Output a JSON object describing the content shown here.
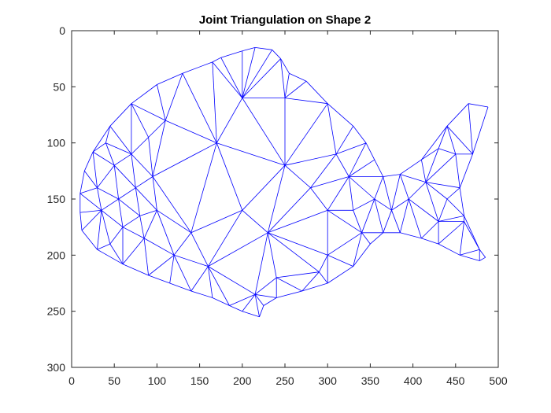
{
  "chart_data": {
    "type": "triangulation",
    "title": "Joint Triangulation on Shape 2",
    "xlim": [
      0,
      500
    ],
    "ylim": [
      0,
      300
    ],
    "y_axis_reversed": true,
    "grid": false,
    "xticks": [
      0,
      50,
      100,
      150,
      200,
      250,
      300,
      350,
      400,
      450,
      500
    ],
    "yticks": [
      0,
      50,
      100,
      150,
      200,
      250,
      300
    ],
    "edge_color": "#0000ff",
    "outline": [
      [
        10,
        145
      ],
      [
        15,
        125
      ],
      [
        25,
        108
      ],
      [
        45,
        85
      ],
      [
        70,
        65
      ],
      [
        100,
        48
      ],
      [
        130,
        38
      ],
      [
        165,
        28
      ],
      [
        175,
        24
      ],
      [
        200,
        18
      ],
      [
        215,
        15
      ],
      [
        235,
        17
      ],
      [
        245,
        25
      ],
      [
        255,
        38
      ],
      [
        275,
        45
      ],
      [
        300,
        65
      ],
      [
        330,
        85
      ],
      [
        345,
        100
      ],
      [
        355,
        115
      ],
      [
        365,
        130
      ],
      [
        385,
        128
      ],
      [
        410,
        115
      ],
      [
        440,
        85
      ],
      [
        465,
        65
      ],
      [
        488,
        68
      ],
      [
        470,
        110
      ],
      [
        455,
        140
      ],
      [
        460,
        165
      ],
      [
        478,
        195
      ],
      [
        485,
        202
      ],
      [
        478,
        205
      ],
      [
        455,
        200
      ],
      [
        430,
        190
      ],
      [
        410,
        185
      ],
      [
        385,
        180
      ],
      [
        365,
        180
      ],
      [
        350,
        190
      ],
      [
        330,
        210
      ],
      [
        300,
        225
      ],
      [
        270,
        232
      ],
      [
        240,
        238
      ],
      [
        225,
        245
      ],
      [
        220,
        255
      ],
      [
        200,
        250
      ],
      [
        185,
        245
      ],
      [
        165,
        238
      ],
      [
        140,
        232
      ],
      [
        115,
        225
      ],
      [
        90,
        218
      ],
      [
        60,
        208
      ],
      [
        30,
        195
      ],
      [
        12,
        178
      ],
      [
        10,
        162
      ]
    ],
    "interior": [
      [
        30,
        140
      ],
      [
        35,
        160
      ],
      [
        50,
        120
      ],
      [
        55,
        150
      ],
      [
        60,
        175
      ],
      [
        70,
        110
      ],
      [
        75,
        140
      ],
      [
        80,
        165
      ],
      [
        85,
        185
      ],
      [
        90,
        95
      ],
      [
        95,
        130
      ],
      [
        100,
        160
      ],
      [
        110,
        80
      ],
      [
        140,
        180
      ],
      [
        200,
        160
      ],
      [
        250,
        120
      ],
      [
        280,
        140
      ],
      [
        300,
        160
      ],
      [
        230,
        180
      ],
      [
        170,
        100
      ],
      [
        310,
        110
      ],
      [
        325,
        130
      ],
      [
        330,
        160
      ],
      [
        340,
        180
      ],
      [
        200,
        60
      ],
      [
        250,
        60
      ],
      [
        300,
        200
      ],
      [
        240,
        220
      ],
      [
        215,
        235
      ],
      [
        290,
        215
      ],
      [
        430,
        105
      ],
      [
        450,
        110
      ],
      [
        440,
        150
      ],
      [
        460,
        170
      ],
      [
        430,
        170
      ],
      [
        415,
        135
      ],
      [
        395,
        150
      ],
      [
        375,
        160
      ],
      [
        355,
        150
      ],
      [
        40,
        100
      ],
      [
        45,
        190
      ],
      [
        120,
        200
      ],
      [
        160,
        210
      ]
    ]
  }
}
